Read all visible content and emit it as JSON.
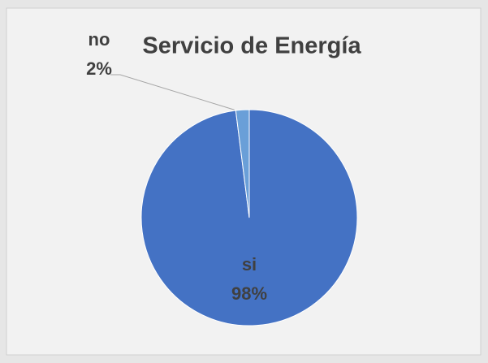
{
  "chart_data": {
    "type": "pie",
    "title": "Servicio de Energía",
    "categories": [
      "si",
      "no"
    ],
    "values": [
      98,
      2
    ],
    "value_labels": [
      "98%",
      "2%"
    ],
    "colors": [
      "#4472c4",
      "#6a9fd8"
    ]
  }
}
